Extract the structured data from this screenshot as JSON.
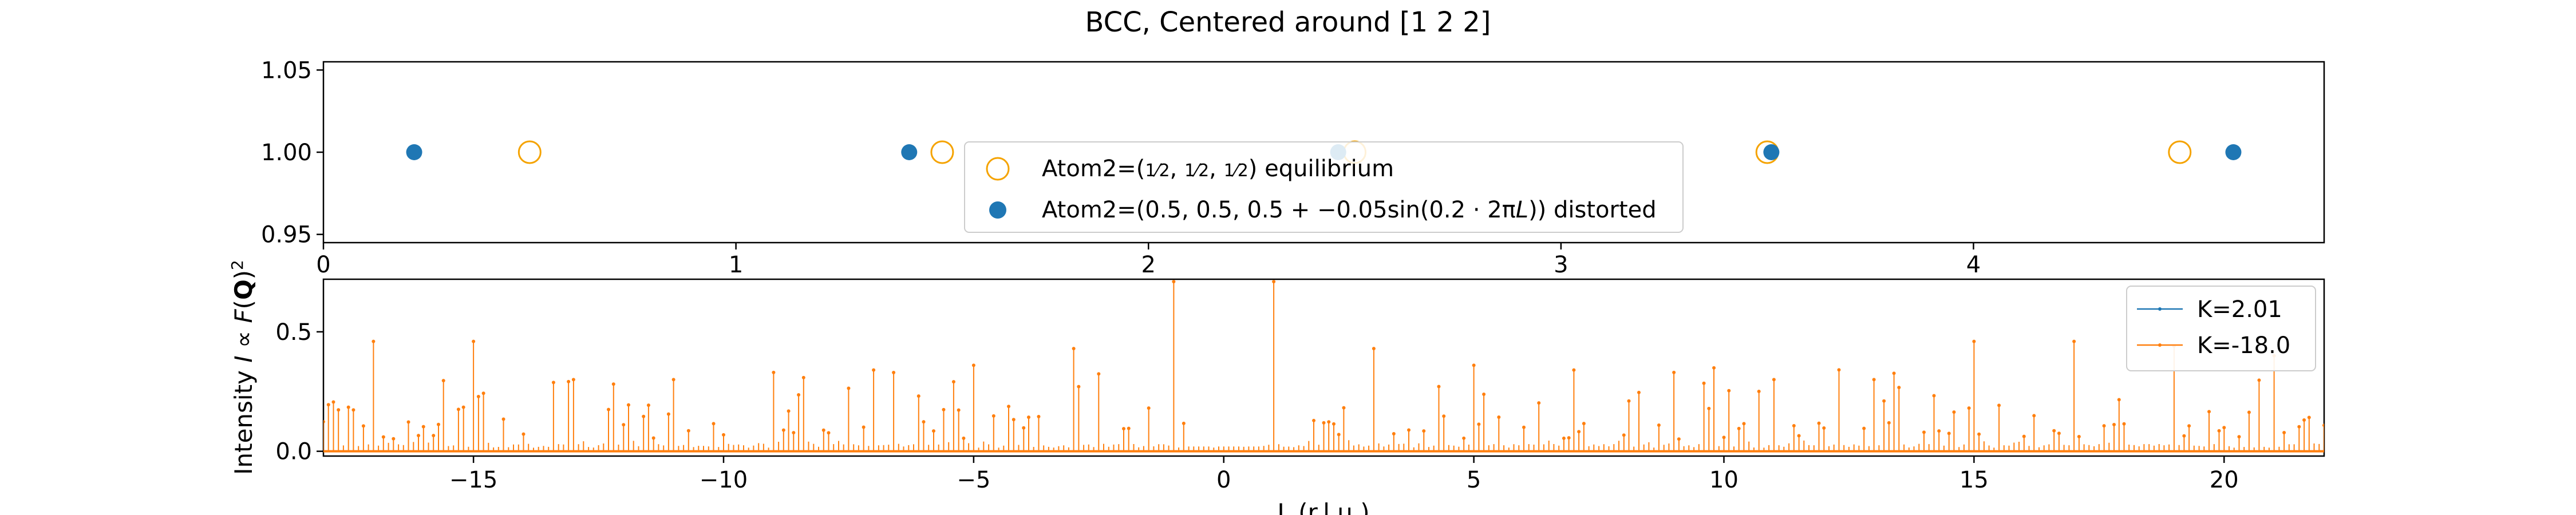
{
  "figure_title": "BCC, Centered around [1 2 2]",
  "colors": {
    "equilibrium": "#f5a300",
    "distorted": "#1f77b4",
    "k_small": "#1f77b4",
    "k_large": "#ff7f0e",
    "axes": "#000000",
    "legend_border": "#cccccc"
  },
  "chart_data": [
    {
      "type": "scatter",
      "title": "",
      "xlim": [
        0,
        4.85
      ],
      "ylim": [
        0.945,
        1.055
      ],
      "xticks": [
        "0",
        "1",
        "2",
        "3",
        "4"
      ],
      "yticks": [
        "0.95",
        "1.00",
        "1.05"
      ],
      "legend": {
        "placement": "lower-center",
        "equilibrium": {
          "prefix": "Atom2=(",
          "fractions": [
            "1",
            "2",
            "1",
            "2",
            "1",
            "2"
          ],
          "suffix": ") equilibrium"
        },
        "distorted": {
          "prefix": "Atom2=(0.5, 0.5, 0.5 + −0.05sin(0.2 · 2π",
          "italic": "L",
          "suffix": ")) distorted"
        }
      },
      "series": [
        {
          "marker": "open-circle",
          "x": [
            0.5,
            1.5,
            2.5,
            3.5,
            4.5
          ],
          "y": [
            1.0,
            1.0,
            1.0,
            1.0,
            1.0
          ]
        },
        {
          "marker": "filled-circle",
          "x": [
            0.22,
            1.42,
            2.46,
            3.51,
            4.63
          ],
          "y": [
            1.0,
            1.0,
            1.0,
            1.0,
            1.0
          ]
        }
      ]
    },
    {
      "type": "line",
      "title": "",
      "xlabel_visible": "L (r.l.u.)",
      "ylabel": "Intensity $I \\propto F(\\mathbf{Q})^2$",
      "xlim": [
        -18,
        22
      ],
      "ylim": [
        -0.02,
        0.72
      ],
      "xticks": [
        "−15",
        "−10",
        "−5",
        "0",
        "5",
        "10",
        "15",
        "20"
      ],
      "yticks": [
        "0.0",
        "0.5"
      ],
      "legend": {
        "placement": "top-right"
      },
      "series": [
        {
          "name": "K=2.01",
          "note": "fully covered by K=-18.0 series",
          "x": [],
          "y": []
        },
        {
          "name": "K=-18.0",
          "style": "stem",
          "x": [
            -17,
            -15,
            -13,
            -11,
            -9,
            -7,
            -5,
            -3,
            -1,
            1,
            3,
            5,
            7,
            9,
            11,
            13,
            15,
            17,
            19,
            21
          ],
          "y": [
            0.46,
            0.46,
            0.3,
            0.3,
            0.33,
            0.34,
            0.36,
            0.43,
            0.71,
            0.71,
            0.43,
            0.36,
            0.34,
            0.33,
            0.3,
            0.3,
            0.46,
            0.46,
            0.44,
            0.4
          ]
        }
      ]
    }
  ]
}
